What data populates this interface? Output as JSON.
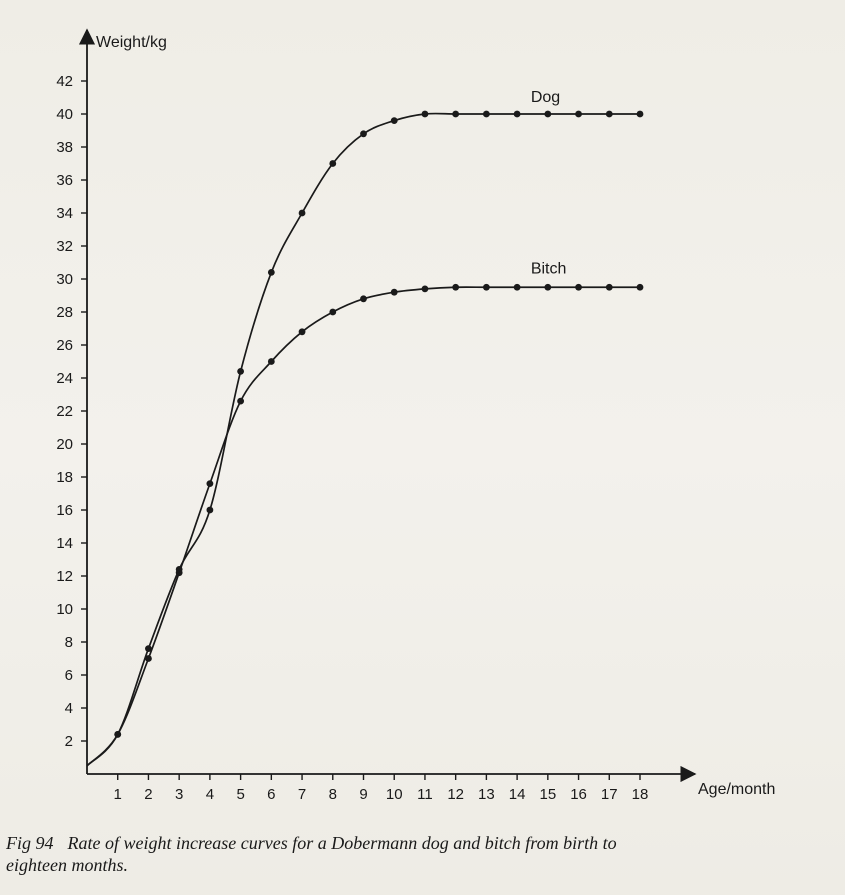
{
  "chart_data": {
    "type": "line",
    "xlabel": "Age/month",
    "ylabel": "Weight/kg",
    "xlim": [
      0,
      18.8
    ],
    "ylim": [
      0,
      43
    ],
    "xticks": [
      1,
      2,
      3,
      4,
      5,
      6,
      7,
      8,
      9,
      10,
      11,
      12,
      13,
      14,
      15,
      16,
      17,
      18
    ],
    "yticks": [
      2,
      4,
      6,
      8,
      10,
      12,
      14,
      16,
      18,
      20,
      22,
      24,
      26,
      28,
      30,
      32,
      34,
      36,
      38,
      40,
      42
    ],
    "grid": false,
    "legend": "none",
    "series": [
      {
        "name": "Dog",
        "x": [
          0,
          1,
          2,
          3,
          4,
          5,
          6,
          7,
          8,
          9,
          10,
          11,
          12,
          13,
          14,
          15,
          16,
          17,
          18
        ],
        "y": [
          0.5,
          2.4,
          7.6,
          12.4,
          16.0,
          24.4,
          30.4,
          34.0,
          37.0,
          38.8,
          39.6,
          40.0,
          40.0,
          40.0,
          40.0,
          40.0,
          40.0,
          40.0,
          40.0
        ]
      },
      {
        "name": "Bitch",
        "x": [
          0,
          1,
          2,
          3,
          4,
          5,
          6,
          7,
          8,
          9,
          10,
          11,
          12,
          13,
          14,
          15,
          16,
          17,
          18
        ],
        "y": [
          0.5,
          2.4,
          7.0,
          12.2,
          17.6,
          22.6,
          25.0,
          26.8,
          28.0,
          28.8,
          29.2,
          29.4,
          29.5,
          29.5,
          29.5,
          29.5,
          29.5,
          29.5,
          29.5
        ]
      }
    ]
  },
  "caption": {
    "fig_number": "Fig 94",
    "text": "Rate of weight increase curves for a Dobermann dog and bitch from birth to eighteen months."
  }
}
